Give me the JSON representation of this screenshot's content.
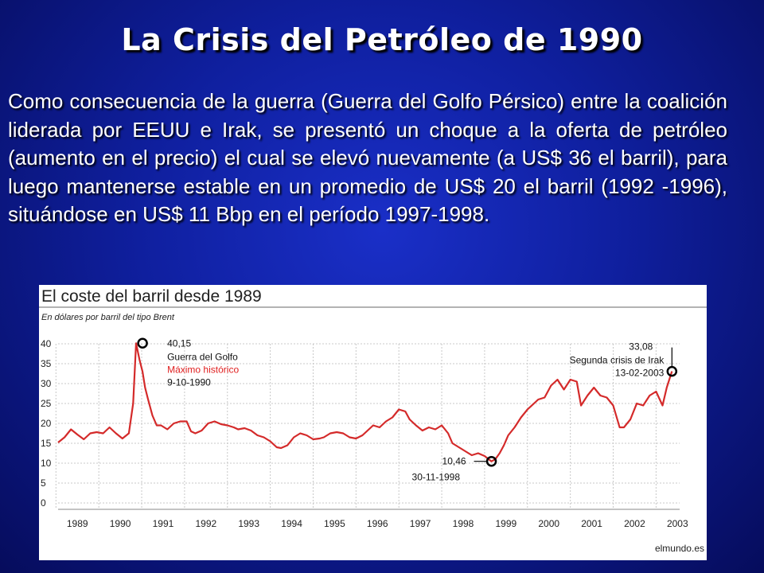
{
  "slide": {
    "title": "La Crisis del Petróleo de 1990",
    "body": "Como consecuencia de la guerra (Guerra del Golfo Pérsico) entre la coalición liderada por EEUU e Irak, se presentó un choque a la oferta de petróleo (aumento en el precio) el cual se elevó nuevamente (a US$ 36 el barril), para luego mantenerse estable en un promedio de US$ 20 el barril (1992 -1996), situándose en US$ 11 Bbp en el período 1997-1998."
  },
  "colors": {
    "background": "#0f1f9e",
    "series": "#d42a2a",
    "highlight": "#e02020",
    "grid": "#c8c8c8",
    "header_rule": "#9a9a9a"
  },
  "chart_data": {
    "type": "line",
    "title": "El coste del barril desde 1989",
    "subtitle": "En dólares por barril del tipo Brent",
    "xlabel": "",
    "ylabel": "",
    "ylim": [
      0,
      40
    ],
    "xlim": [
      1988.8,
      2003.3
    ],
    "yticks": [
      "0",
      "5",
      "10",
      "15",
      "20",
      "25",
      "30",
      "35",
      "40"
    ],
    "xticks": [
      "1989",
      "1990",
      "1991",
      "1992",
      "1993",
      "1994",
      "1995",
      "1996",
      "1997",
      "1998",
      "1999",
      "2000",
      "2001",
      "2002",
      "2003"
    ],
    "grid": true,
    "source": "elmundo.es",
    "series": [
      {
        "x": [
          1988.8,
          1988.95,
          1989.1,
          1989.25,
          1989.4,
          1989.55,
          1989.7,
          1989.85,
          1990.0,
          1990.15,
          1990.3,
          1990.45,
          1990.55,
          1990.62,
          1990.7,
          1990.77,
          1990.83,
          1990.9,
          1991.0,
          1991.1,
          1991.2,
          1991.35,
          1991.5,
          1991.65,
          1991.8,
          1991.9,
          1992.0,
          1992.15,
          1992.3,
          1992.45,
          1992.6,
          1992.75,
          1992.9,
          1993.0,
          1993.15,
          1993.3,
          1993.45,
          1993.6,
          1993.75,
          1993.9,
          1994.0,
          1994.15,
          1994.3,
          1994.45,
          1994.6,
          1994.75,
          1994.9,
          1995.0,
          1995.15,
          1995.3,
          1995.45,
          1995.6,
          1995.75,
          1995.9,
          1996.0,
          1996.15,
          1996.3,
          1996.45,
          1996.6,
          1996.75,
          1996.9,
          1997.0,
          1997.15,
          1997.3,
          1997.45,
          1997.6,
          1997.75,
          1997.9,
          1998.0,
          1998.15,
          1998.3,
          1998.45,
          1998.6,
          1998.75,
          1998.91,
          1999.0,
          1999.1,
          1999.2,
          1999.3,
          1999.45,
          1999.6,
          1999.75,
          1999.9,
          2000.0,
          2000.15,
          2000.3,
          2000.45,
          2000.6,
          2000.75,
          2000.9,
          2001.0,
          2001.15,
          2001.3,
          2001.45,
          2001.6,
          2001.75,
          2001.9,
          2002.0,
          2002.15,
          2002.3,
          2002.45,
          2002.6,
          2002.75,
          2002.9,
          2003.0,
          2003.12
        ],
        "values": [
          15.2,
          16.5,
          18.5,
          17.2,
          16.0,
          17.5,
          17.8,
          17.5,
          19.0,
          17.5,
          16.2,
          17.5,
          25.0,
          40.15,
          36.0,
          33.0,
          29.0,
          26.0,
          22.0,
          19.5,
          19.5,
          18.5,
          20.0,
          20.5,
          20.5,
          18.0,
          17.5,
          18.2,
          20.0,
          20.5,
          19.8,
          19.5,
          19.0,
          18.5,
          18.8,
          18.2,
          17.0,
          16.5,
          15.5,
          14.0,
          13.8,
          14.5,
          16.5,
          17.5,
          17.0,
          16.0,
          16.2,
          16.5,
          17.5,
          17.8,
          17.5,
          16.5,
          16.2,
          17.0,
          18.0,
          19.5,
          19.0,
          20.5,
          21.5,
          23.5,
          23.0,
          21.0,
          19.5,
          18.2,
          19.0,
          18.5,
          19.5,
          17.5,
          15.0,
          14.0,
          13.0,
          12.0,
          12.5,
          11.8,
          10.46,
          11.0,
          12.5,
          14.5,
          17.0,
          19.0,
          21.5,
          23.5,
          25.0,
          26.0,
          26.5,
          29.5,
          31.0,
          28.5,
          31.0,
          30.5,
          24.5,
          27.0,
          29.0,
          27.0,
          26.5,
          24.5,
          19.0,
          19.0,
          21.0,
          25.0,
          24.5,
          27.0,
          28.0,
          24.5,
          29.0,
          33.08
        ]
      }
    ],
    "annotations": {
      "peak": {
        "value": "40,15",
        "line1": "Guerra del Golfo",
        "line2": "Máximo histórico",
        "date": "9-10-1990",
        "x": 1990.77,
        "y": 40.15
      },
      "low": {
        "value": "10,46",
        "date": "30-11-1998",
        "x": 1998.91,
        "y": 10.46
      },
      "last": {
        "value": "33,08",
        "line1": "Segunda crisis de Irak",
        "date": "13-02-2003",
        "x": 2003.12,
        "y": 33.08
      }
    }
  }
}
